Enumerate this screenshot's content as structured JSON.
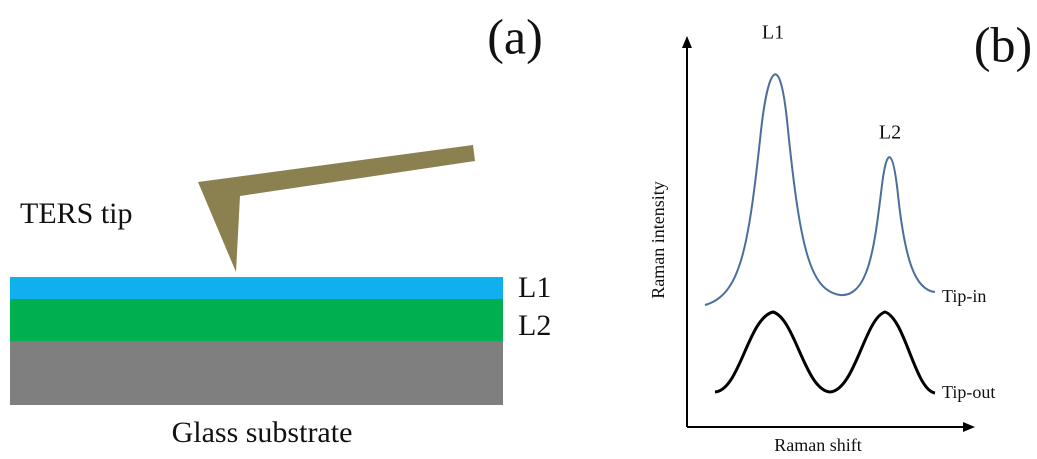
{
  "panel_a": {
    "label": "(a)",
    "tip_label": "TERS tip",
    "layers": [
      "L1",
      "L2"
    ],
    "substrate_label": "Glass substrate"
  },
  "panel_b": {
    "label": "(b)",
    "peaks": [
      "L1",
      "L2"
    ],
    "y_axis_label": "Raman intensity",
    "x_axis_label": "Raman shift",
    "curves": [
      "Tip-in",
      "Tip-out"
    ]
  }
}
